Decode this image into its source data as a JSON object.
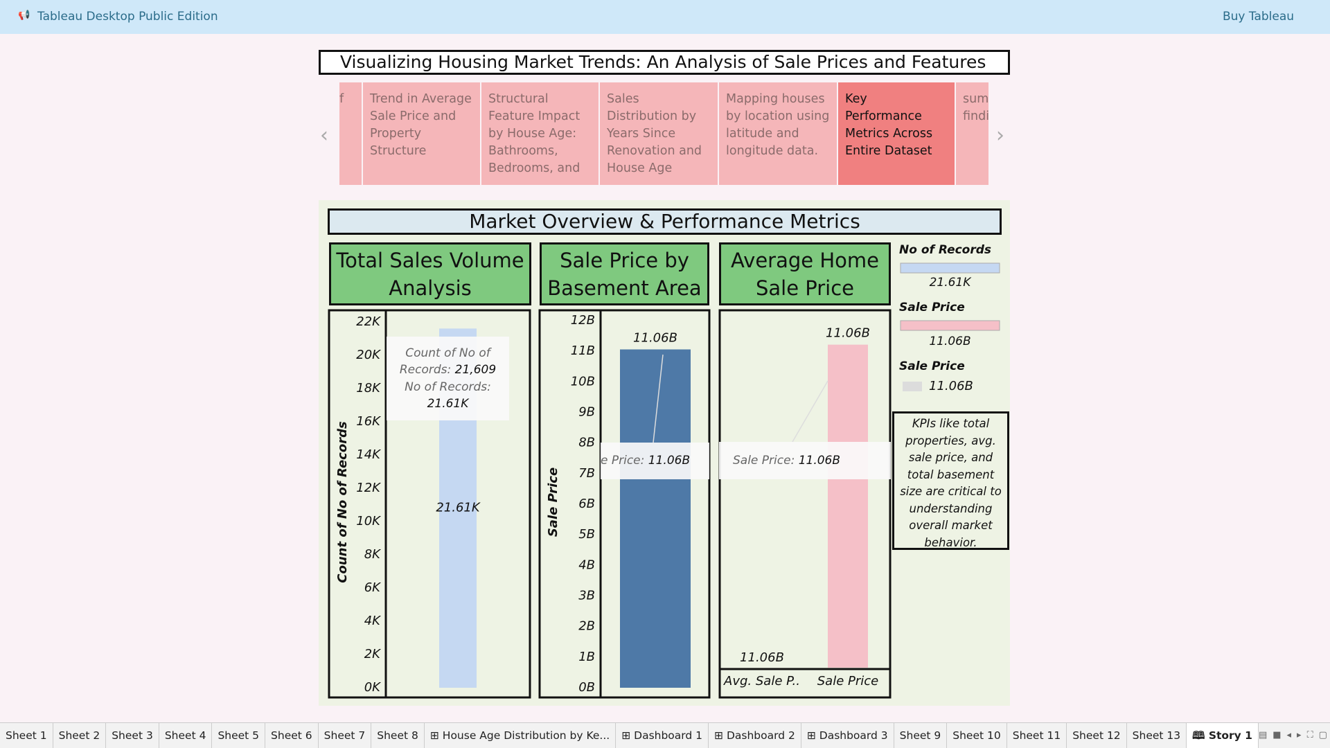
{
  "app": {
    "title": "Tableau Desktop Public Edition",
    "buy": "Buy Tableau"
  },
  "story": {
    "title": "Visualizing Housing Market Trends: An Analysis of Sale Prices and Features",
    "points": [
      "f",
      "Trend in Average Sale Price and Property Structure",
      "Structural Feature Impact by House Age: Bathrooms, Bedrooms, and",
      "Sales Distribution by Years Since Renovation and House Age",
      "Mapping houses by location using latitude and longitude data.",
      "Key Performance Metrics Across Entire Dataset",
      "sum findi"
    ],
    "selected": 5
  },
  "dashboard": {
    "title": "Market Overview & Performance Metrics",
    "legend": [
      {
        "name": "No of Records",
        "color": "#c5d8f2",
        "value": "21.61K"
      },
      {
        "name": "Sale Price",
        "color": "#f5c0c8",
        "value": "11.06B"
      },
      {
        "name": "Sale Price",
        "color": "#dcdcdc",
        "value": "11.06B"
      }
    ],
    "note": "KPIs like total properties, avg. sale price, and total basement size are critical to understanding overall market behavior."
  },
  "chart_data": [
    {
      "type": "bar",
      "title": "Total Sales Volume Analysis",
      "y_label": "Count of No of Records",
      "values": [
        21609
      ],
      "value_labels": [
        "21.61K"
      ],
      "color": "#c5d8f2",
      "ylim": [
        0,
        22000
      ],
      "yticks": [
        {
          "value": 0,
          "label": "0K"
        },
        {
          "value": 2000,
          "label": "2K"
        },
        {
          "value": 4000,
          "label": "4K"
        },
        {
          "value": 6000,
          "label": "6K"
        },
        {
          "value": 8000,
          "label": "8K"
        },
        {
          "value": 10000,
          "label": "10K"
        },
        {
          "value": 12000,
          "label": "12K"
        },
        {
          "value": 14000,
          "label": "14K"
        },
        {
          "value": 16000,
          "label": "16K"
        },
        {
          "value": 18000,
          "label": "18K"
        },
        {
          "value": 20000,
          "label": "20K"
        },
        {
          "value": 22000,
          "label": "22K"
        }
      ],
      "tooltip": [
        {
          "label": "Count of No of Records:",
          "value": "21,609"
        },
        {
          "label": "No of Records:",
          "value": "21.61K"
        }
      ]
    },
    {
      "type": "bar",
      "title": "Sale Price by Basement Area",
      "y_label": "Sale Price",
      "values": [
        11060000000
      ],
      "value_labels": [
        "11.06B"
      ],
      "color": "#4e79a7",
      "ylim": [
        0,
        12000000000
      ],
      "yticks": [
        {
          "value": 0,
          "label": "0B"
        },
        {
          "value": 1000000000,
          "label": "1B"
        },
        {
          "value": 2000000000,
          "label": "2B"
        },
        {
          "value": 3000000000,
          "label": "3B"
        },
        {
          "value": 4000000000,
          "label": "4B"
        },
        {
          "value": 5000000000,
          "label": "5B"
        },
        {
          "value": 6000000000,
          "label": "6B"
        },
        {
          "value": 7000000000,
          "label": "7B"
        },
        {
          "value": 8000000000,
          "label": "8B"
        },
        {
          "value": 9000000000,
          "label": "9B"
        },
        {
          "value": 10000000000,
          "label": "10B"
        },
        {
          "value": 11000000000,
          "label": "11B"
        },
        {
          "value": 12000000000,
          "label": "12B"
        }
      ],
      "tooltip": [
        {
          "label": "e Price:",
          "value": "11.06B"
        }
      ]
    },
    {
      "type": "bar",
      "title": "Average Home Sale Price",
      "categories": [
        "Avg. Sale P..",
        "Sale Price"
      ],
      "marks": [
        "text",
        "bar"
      ],
      "values": [
        11060000000,
        11060000000
      ],
      "value_labels": [
        "11.06B",
        "11.06B"
      ],
      "color": "#f5c0c8",
      "ylim": [
        0,
        12000000000
      ],
      "tooltip": [
        {
          "label": "Sale Price:",
          "value": "11.06B"
        }
      ]
    }
  ],
  "tabs": [
    {
      "name": "Sheet 1",
      "kind": "sheet"
    },
    {
      "name": "Sheet 2",
      "kind": "sheet"
    },
    {
      "name": "Sheet 3",
      "kind": "sheet"
    },
    {
      "name": "Sheet 4",
      "kind": "sheet"
    },
    {
      "name": "Sheet 5",
      "kind": "sheet"
    },
    {
      "name": "Sheet 6",
      "kind": "sheet"
    },
    {
      "name": "Sheet 7",
      "kind": "sheet"
    },
    {
      "name": "Sheet 8",
      "kind": "sheet"
    },
    {
      "name": "House Age Distribution by Ke...",
      "kind": "dashboard"
    },
    {
      "name": "Dashboard 1",
      "kind": "dashboard"
    },
    {
      "name": "Dashboard 2",
      "kind": "dashboard"
    },
    {
      "name": "Dashboard 3",
      "kind": "dashboard"
    },
    {
      "name": "Sheet 9",
      "kind": "sheet"
    },
    {
      "name": "Sheet 10",
      "kind": "sheet"
    },
    {
      "name": "Sheet 11",
      "kind": "sheet"
    },
    {
      "name": "Sheet 12",
      "kind": "sheet"
    },
    {
      "name": "Sheet 13",
      "kind": "sheet"
    },
    {
      "name": "Story 1",
      "kind": "story"
    }
  ]
}
